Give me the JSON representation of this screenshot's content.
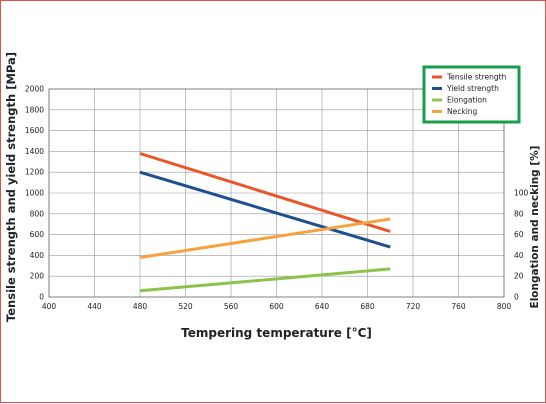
{
  "chart_data": {
    "type": "line",
    "xlabel": "Tempering temperature [°C]",
    "ylabel_left": "Tensile strength and yield strength [MPa]",
    "ylabel_right": "Elongation and necking [%]",
    "xlim": [
      400,
      800
    ],
    "xticks": [
      400,
      440,
      480,
      520,
      560,
      600,
      640,
      680,
      720,
      760,
      800
    ],
    "ylim_left": [
      0,
      2000
    ],
    "yticks_left": [
      0,
      200,
      400,
      600,
      800,
      1000,
      1200,
      1400,
      1600,
      1800,
      2000
    ],
    "ylim_right": [
      0,
      200
    ],
    "yticks_right": [
      0,
      20,
      40,
      60,
      80,
      100
    ],
    "grid": true,
    "legend_position": "top-right",
    "legend_border_color": "#1a9c4a",
    "series": [
      {
        "name": "Tensile strength",
        "axis": "left",
        "color": "#e8572a",
        "x": [
          480,
          700
        ],
        "y": [
          1380,
          630
        ]
      },
      {
        "name": "Yield strength",
        "axis": "left",
        "color": "#1d4f91",
        "x": [
          480,
          700
        ],
        "y": [
          1200,
          480
        ]
      },
      {
        "name": "Elongation",
        "axis": "right",
        "color": "#8cc34a",
        "x": [
          480,
          700
        ],
        "y": [
          6,
          27
        ]
      },
      {
        "name": "Necking",
        "axis": "right",
        "color": "#f5a340",
        "x": [
          480,
          700
        ],
        "y": [
          38,
          75
        ]
      }
    ]
  }
}
